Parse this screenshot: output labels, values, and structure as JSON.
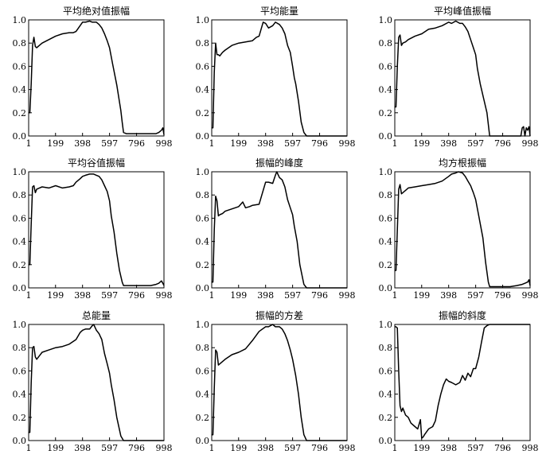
{
  "chart_data": [
    {
      "type": "line",
      "title": "平均绝对值振幅",
      "xlim": [
        1,
        998
      ],
      "ylim": [
        0,
        1
      ],
      "xticks": [
        1,
        199,
        398,
        597,
        796,
        998
      ],
      "yticks": [
        "0.0",
        "0.2",
        "0.4",
        "0.6",
        "0.8",
        "1.0"
      ],
      "series": [
        {
          "x": [
            1,
            10,
            20,
            30,
            40,
            50,
            60,
            80,
            100,
            150,
            200,
            250,
            300,
            330,
            350,
            398,
            420,
            450,
            470,
            500,
            520,
            540,
            560,
            580,
            597,
            620,
            650,
            680,
            690,
            700,
            720,
            740,
            760,
            780,
            800,
            850,
            900,
            940,
            960,
            980,
            990,
            998
          ],
          "y": [
            0.2,
            0.2,
            0.45,
            0.78,
            0.85,
            0.77,
            0.76,
            0.78,
            0.8,
            0.83,
            0.86,
            0.88,
            0.89,
            0.89,
            0.9,
            0.98,
            0.98,
            0.99,
            0.98,
            0.98,
            0.96,
            0.93,
            0.88,
            0.82,
            0.76,
            0.62,
            0.44,
            0.22,
            0.12,
            0.03,
            0.02,
            0.02,
            0.02,
            0.02,
            0.02,
            0.02,
            0.02,
            0.02,
            0.03,
            0.05,
            0.07,
            0.01
          ]
        }
      ]
    },
    {
      "type": "line",
      "title": "平均能量",
      "xlim": [
        1,
        998
      ],
      "ylim": [
        0,
        1
      ],
      "xticks": [
        1,
        199,
        398,
        597,
        796,
        998
      ],
      "yticks": [
        "0.0",
        "0.2",
        "0.4",
        "0.6",
        "0.8",
        "1.0"
      ],
      "series": [
        {
          "x": [
            1,
            10,
            20,
            30,
            40,
            50,
            60,
            80,
            100,
            150,
            200,
            250,
            300,
            330,
            350,
            380,
            398,
            420,
            450,
            470,
            500,
            520,
            540,
            560,
            580,
            597,
            610,
            620,
            640,
            660,
            680,
            700,
            720,
            750,
            800,
            900,
            998
          ],
          "y": [
            0.07,
            0.07,
            0.55,
            0.8,
            0.7,
            0.7,
            0.69,
            0.72,
            0.74,
            0.78,
            0.8,
            0.81,
            0.82,
            0.85,
            0.86,
            0.98,
            0.97,
            0.93,
            0.95,
            0.98,
            0.96,
            0.93,
            0.88,
            0.78,
            0.72,
            0.6,
            0.5,
            0.45,
            0.3,
            0.12,
            0.03,
            0.0,
            0.0,
            0.0,
            0.0,
            0.0,
            0.0
          ]
        }
      ]
    },
    {
      "type": "line",
      "title": "平均峰值振幅",
      "xlim": [
        1,
        998
      ],
      "ylim": [
        0,
        1
      ],
      "xticks": [
        1,
        199,
        398,
        597,
        796,
        998
      ],
      "yticks": [
        "0.0",
        "0.2",
        "0.4",
        "0.6",
        "0.8",
        "1.0"
      ],
      "series": [
        {
          "x": [
            1,
            10,
            20,
            30,
            40,
            50,
            60,
            80,
            100,
            150,
            200,
            250,
            300,
            350,
            398,
            420,
            450,
            480,
            500,
            520,
            540,
            560,
            580,
            597,
            610,
            630,
            650,
            680,
            700,
            720,
            740,
            760,
            780,
            800,
            850,
            900,
            930,
            940,
            950,
            960,
            970,
            980,
            990,
            998
          ],
          "y": [
            0.25,
            0.25,
            0.6,
            0.85,
            0.87,
            0.78,
            0.8,
            0.81,
            0.83,
            0.86,
            0.88,
            0.92,
            0.93,
            0.95,
            0.98,
            0.97,
            0.99,
            0.97,
            0.97,
            0.94,
            0.9,
            0.83,
            0.76,
            0.7,
            0.58,
            0.45,
            0.35,
            0.2,
            0.0,
            0.0,
            0.0,
            0.0,
            0.0,
            0.0,
            0.0,
            0.0,
            0.0,
            0.07,
            0.08,
            0.0,
            0.07,
            0.05,
            0.08,
            0.0
          ]
        }
      ]
    },
    {
      "type": "line",
      "title": "平均谷值振幅",
      "xlim": [
        1,
        998
      ],
      "ylim": [
        0,
        1
      ],
      "xticks": [
        1,
        199,
        398,
        597,
        796,
        998
      ],
      "yticks": [
        "0.0",
        "0.2",
        "0.4",
        "0.6",
        "0.8",
        "1.0"
      ],
      "series": [
        {
          "x": [
            1,
            10,
            20,
            30,
            40,
            50,
            60,
            80,
            100,
            150,
            200,
            250,
            300,
            330,
            350,
            380,
            398,
            420,
            450,
            480,
            500,
            520,
            540,
            560,
            580,
            597,
            610,
            630,
            650,
            670,
            690,
            700,
            720,
            750,
            800,
            850,
            900,
            940,
            960,
            980,
            990,
            998
          ],
          "y": [
            0.2,
            0.2,
            0.55,
            0.87,
            0.88,
            0.82,
            0.85,
            0.86,
            0.87,
            0.86,
            0.88,
            0.86,
            0.87,
            0.88,
            0.91,
            0.94,
            0.96,
            0.97,
            0.98,
            0.98,
            0.97,
            0.96,
            0.93,
            0.88,
            0.83,
            0.75,
            0.62,
            0.48,
            0.3,
            0.15,
            0.05,
            0.02,
            0.02,
            0.02,
            0.02,
            0.02,
            0.02,
            0.03,
            0.04,
            0.06,
            0.04,
            0.02
          ]
        }
      ]
    },
    {
      "type": "line",
      "title": "振幅的峰度",
      "xlim": [
        1,
        998
      ],
      "ylim": [
        0,
        1
      ],
      "xticks": [
        1,
        199,
        398,
        597,
        796,
        998
      ],
      "yticks": [
        "0.0",
        "0.2",
        "0.4",
        "0.6",
        "0.8",
        "1.0"
      ],
      "series": [
        {
          "x": [
            1,
            10,
            20,
            30,
            40,
            50,
            60,
            80,
            100,
            150,
            200,
            230,
            250,
            280,
            300,
            350,
            398,
            420,
            450,
            470,
            480,
            500,
            520,
            540,
            560,
            580,
            597,
            610,
            630,
            650,
            680,
            700,
            720,
            750,
            800,
            900,
            998
          ],
          "y": [
            0.05,
            0.05,
            0.5,
            0.79,
            0.75,
            0.62,
            0.63,
            0.64,
            0.66,
            0.68,
            0.7,
            0.74,
            0.69,
            0.7,
            0.71,
            0.72,
            0.91,
            0.91,
            0.9,
            0.97,
            1.0,
            0.95,
            0.93,
            0.87,
            0.76,
            0.69,
            0.63,
            0.53,
            0.4,
            0.2,
            0.03,
            0.0,
            0.0,
            0.0,
            0.0,
            0.0,
            0.0
          ]
        }
      ]
    },
    {
      "type": "line",
      "title": "均方根振幅",
      "xlim": [
        1,
        998
      ],
      "ylim": [
        0,
        1
      ],
      "xticks": [
        1,
        199,
        398,
        597,
        796,
        998
      ],
      "yticks": [
        "0.0",
        "0.2",
        "0.4",
        "0.6",
        "0.8",
        "1.0"
      ],
      "series": [
        {
          "x": [
            1,
            10,
            20,
            30,
            40,
            50,
            60,
            80,
            100,
            150,
            200,
            250,
            300,
            350,
            398,
            420,
            450,
            470,
            500,
            520,
            540,
            560,
            580,
            597,
            620,
            650,
            670,
            690,
            700,
            720,
            750,
            800,
            850,
            900,
            940,
            960,
            980,
            990,
            998
          ],
          "y": [
            0.15,
            0.15,
            0.5,
            0.85,
            0.89,
            0.81,
            0.82,
            0.84,
            0.86,
            0.87,
            0.88,
            0.89,
            0.9,
            0.92,
            0.96,
            0.98,
            0.99,
            1.0,
            0.99,
            0.96,
            0.92,
            0.88,
            0.82,
            0.76,
            0.62,
            0.43,
            0.22,
            0.05,
            0.01,
            0.01,
            0.01,
            0.01,
            0.01,
            0.02,
            0.03,
            0.04,
            0.05,
            0.07,
            0.02
          ]
        }
      ]
    },
    {
      "type": "line",
      "title": "总能量",
      "xlim": [
        1,
        998
      ],
      "ylim": [
        0,
        1
      ],
      "xticks": [
        1,
        199,
        398,
        597,
        796,
        998
      ],
      "yticks": [
        "0.0",
        "0.2",
        "0.4",
        "0.6",
        "0.8",
        "1.0"
      ],
      "series": [
        {
          "x": [
            1,
            10,
            20,
            30,
            40,
            50,
            60,
            80,
            100,
            150,
            200,
            250,
            300,
            350,
            380,
            398,
            420,
            450,
            470,
            480,
            500,
            520,
            540,
            560,
            580,
            597,
            610,
            630,
            650,
            680,
            700,
            720,
            750,
            800,
            900,
            998
          ],
          "y": [
            0.07,
            0.07,
            0.5,
            0.8,
            0.81,
            0.72,
            0.7,
            0.73,
            0.76,
            0.78,
            0.8,
            0.81,
            0.83,
            0.87,
            0.93,
            0.95,
            0.96,
            0.96,
            0.99,
            1.0,
            0.95,
            0.92,
            0.87,
            0.75,
            0.66,
            0.58,
            0.48,
            0.35,
            0.2,
            0.04,
            0.0,
            0.0,
            0.0,
            0.0,
            0.0,
            0.0
          ]
        }
      ]
    },
    {
      "type": "line",
      "title": "振幅的方差",
      "xlim": [
        1,
        998
      ],
      "ylim": [
        0,
        1
      ],
      "xticks": [
        1,
        199,
        398,
        597,
        796,
        998
      ],
      "yticks": [
        "0.0",
        "0.2",
        "0.4",
        "0.6",
        "0.8",
        "1.0"
      ],
      "series": [
        {
          "x": [
            1,
            10,
            20,
            30,
            40,
            50,
            60,
            80,
            100,
            150,
            200,
            250,
            300,
            350,
            398,
            420,
            450,
            470,
            500,
            520,
            540,
            560,
            580,
            597,
            620,
            640,
            660,
            680,
            700,
            720,
            750,
            800,
            900,
            998
          ],
          "y": [
            0.05,
            0.05,
            0.45,
            0.78,
            0.76,
            0.65,
            0.66,
            0.68,
            0.7,
            0.74,
            0.76,
            0.79,
            0.86,
            0.94,
            0.98,
            0.98,
            1.0,
            0.98,
            0.98,
            0.96,
            0.92,
            0.86,
            0.78,
            0.7,
            0.56,
            0.4,
            0.2,
            0.05,
            0.0,
            0.0,
            0.0,
            0.0,
            0.0,
            0.0
          ]
        }
      ]
    },
    {
      "type": "line",
      "title": "振幅的斜度",
      "xlim": [
        1,
        998
      ],
      "ylim": [
        0,
        1
      ],
      "xticks": [
        1,
        199,
        398,
        597,
        796,
        998
      ],
      "yticks": [
        "0.0",
        "0.2",
        "0.4",
        "0.6",
        "0.8",
        "1.0"
      ],
      "series": [
        {
          "x": [
            1,
            10,
            20,
            30,
            40,
            50,
            60,
            80,
            100,
            120,
            150,
            170,
            190,
            199,
            210,
            220,
            250,
            280,
            300,
            320,
            340,
            360,
            380,
            398,
            420,
            450,
            480,
            500,
            520,
            540,
            560,
            580,
            597,
            620,
            640,
            660,
            680,
            700,
            720,
            750,
            800,
            850,
            900,
            950,
            998
          ],
          "y": [
            0.98,
            0.98,
            0.97,
            0.6,
            0.3,
            0.25,
            0.28,
            0.22,
            0.2,
            0.15,
            0.12,
            0.1,
            0.18,
            0.02,
            0.03,
            0.05,
            0.1,
            0.12,
            0.17,
            0.3,
            0.4,
            0.48,
            0.53,
            0.51,
            0.5,
            0.48,
            0.5,
            0.56,
            0.52,
            0.58,
            0.55,
            0.62,
            0.62,
            0.72,
            0.85,
            0.97,
            0.99,
            1.0,
            1.0,
            1.0,
            1.0,
            1.0,
            1.0,
            1.0,
            1.0
          ]
        }
      ]
    }
  ]
}
